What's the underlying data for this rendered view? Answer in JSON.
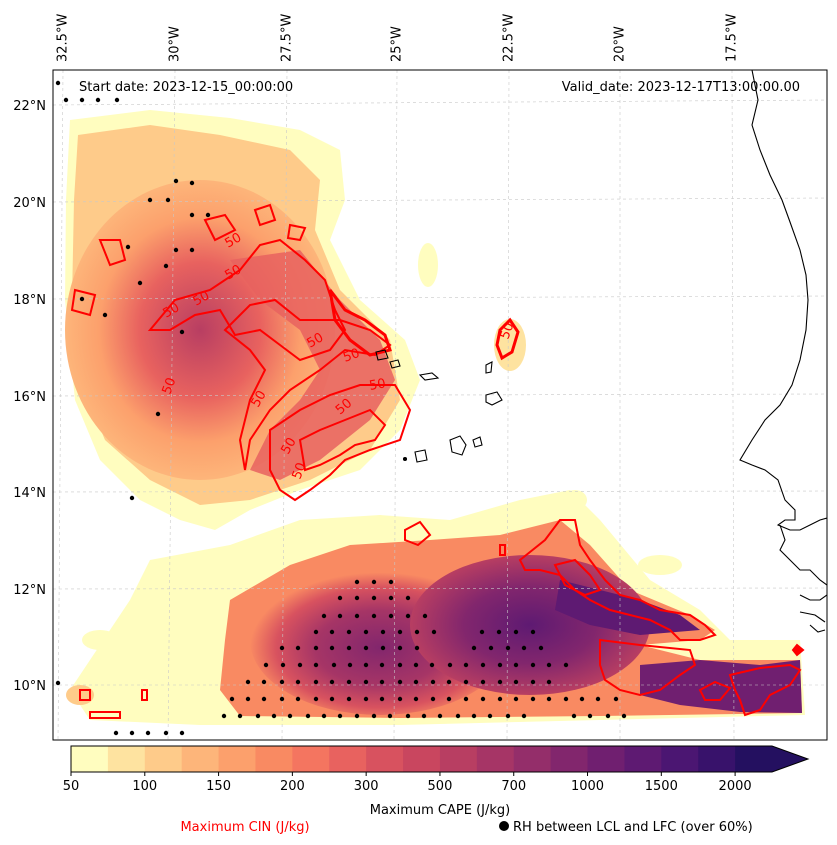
{
  "map": {
    "start_date": "Start date: 2023-12-15_00:00:00",
    "valid_date": "Valid_date: 2023-12-17T13:00:00.00",
    "lon_labels": [
      "32.5°W",
      "30°W",
      "27.5°W",
      "25°W",
      "22.5°W",
      "20°W",
      "17.5°W"
    ],
    "lat_labels": [
      "22°N",
      "20°N",
      "18°N",
      "16°N",
      "14°N",
      "12°N",
      "10°N"
    ],
    "cin_contour_label": "50",
    "colorbar": {
      "ticks": [
        "50",
        "100",
        "150",
        "200",
        "300",
        "500",
        "700",
        "1000",
        "1500",
        "2000"
      ],
      "label": "Maximum CAPE (J/kg)",
      "colors": [
        "#fffdbf",
        "#fee3a0",
        "#fecb8a",
        "#fdb57a",
        "#fca06c",
        "#f98a62",
        "#f47560",
        "#e8625f",
        "#d8525f",
        "#c9465f",
        "#b83e62",
        "#a63566",
        "#942e6a",
        "#82266d",
        "#701f70",
        "#5e1a72",
        "#4b1672",
        "#38126b",
        "#241060"
      ]
    },
    "legend": {
      "cin_label": "Maximum CIN (J/kg)",
      "cin_color": "#ff0000",
      "rh_label": "RH between LCL and LFC (over 60%)",
      "rh_marker": "black-dot"
    }
  }
}
